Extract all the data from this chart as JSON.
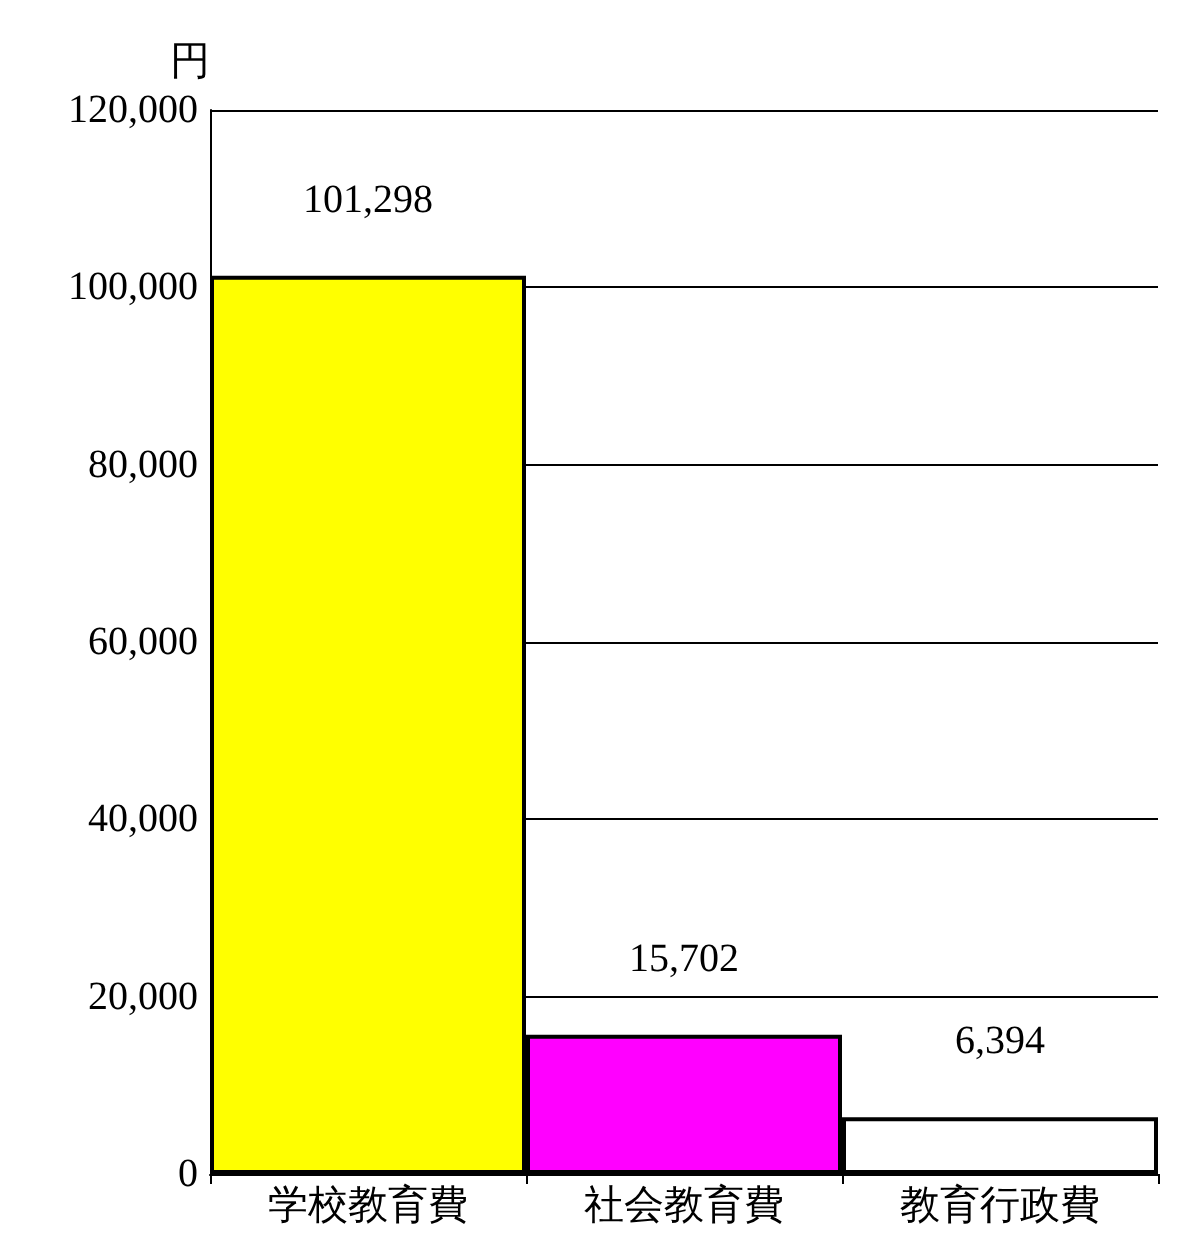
{
  "chart_data": {
    "type": "bar",
    "ylabel": "円",
    "categories": [
      "学校教育費",
      "社会教育費",
      "教育行政費"
    ],
    "values": [
      101298,
      15702,
      6394
    ],
    "value_labels": [
      "101,298",
      "15,702",
      "6,394"
    ],
    "colors": [
      "#ffff00",
      "#ff00ff",
      "#ffffff"
    ],
    "ylim": [
      0,
      120000
    ],
    "yticks": [
      0,
      {
        "value": 20000,
        "label": "20,000"
      },
      {
        "value": 40000,
        "label": "40,000"
      },
      {
        "value": 60000,
        "label": "60,000"
      },
      {
        "value": 80000,
        "label": "80,000"
      },
      {
        "value": 100000,
        "label": "100,000"
      },
      {
        "value": 120000,
        "label": "120,000"
      }
    ],
    "grid": "y"
  }
}
